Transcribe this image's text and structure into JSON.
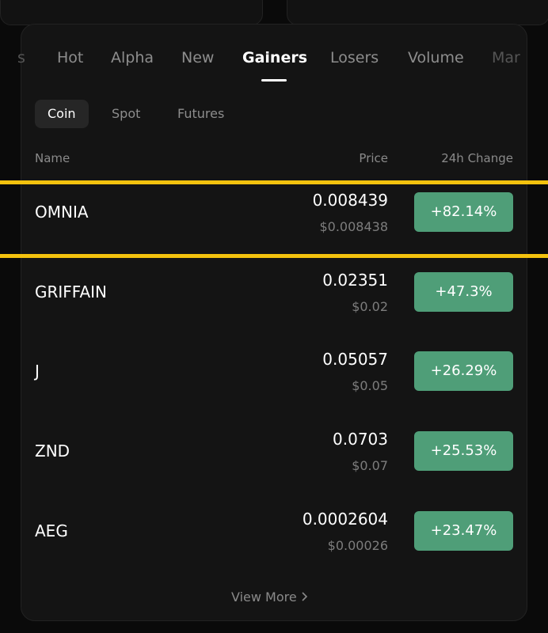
{
  "tabs": [
    "s",
    "Hot",
    "Alpha",
    "New",
    "Gainers",
    "Losers",
    "Volume",
    "Mar"
  ],
  "active_tab": "Gainers",
  "subtabs": [
    "Coin",
    "Spot",
    "Futures"
  ],
  "active_subtab": "Coin",
  "table": {
    "headers": [
      "Name",
      "Price",
      "24h Change"
    ],
    "rows": [
      {
        "name": "OMNIA",
        "price": "0.008439",
        "usd": "$0.008438",
        "change": "+82.14%"
      },
      {
        "name": "GRIFFAIN",
        "price": "0.02351",
        "usd": "$0.02",
        "change": "+47.3%"
      },
      {
        "name": "J",
        "price": "0.05057",
        "usd": "$0.05",
        "change": "+26.29%"
      },
      {
        "name": "ZND",
        "price": "0.0703",
        "usd": "$0.07",
        "change": "+25.53%"
      },
      {
        "name": "AEG",
        "price": "0.0002604",
        "usd": "$0.00026",
        "change": "+23.47%"
      }
    ]
  },
  "view_more": "View More"
}
